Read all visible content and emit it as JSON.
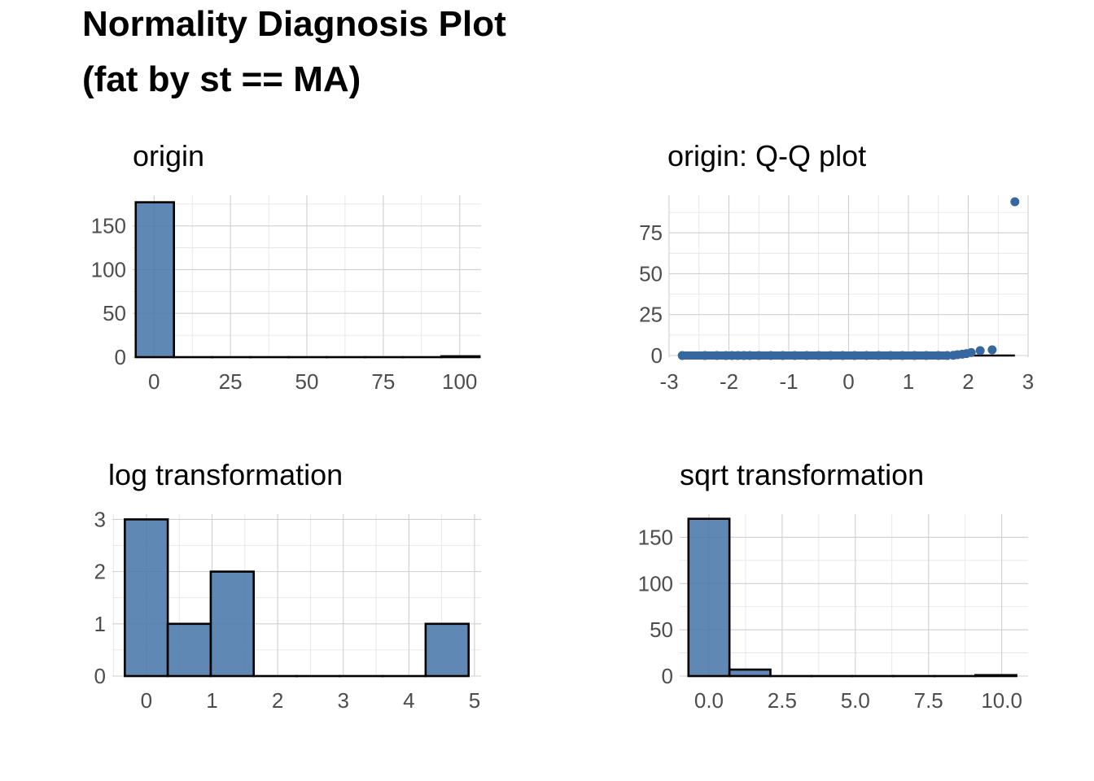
{
  "figure": {
    "title_line1": "Normality Diagnosis Plot",
    "title_line2": "(fat by st == MA)"
  },
  "colors": {
    "bar_fill": "#4a77ab",
    "bar_stroke": "#000000",
    "point": "#36679f",
    "grid": "#cfcfcf",
    "tick_text": "#4d4d4d"
  },
  "chart_data": [
    {
      "id": "origin",
      "type": "bar",
      "title": "origin",
      "xlabel": "",
      "ylabel": "",
      "bins": [
        [
          -6,
          6.5,
          177
        ],
        [
          6.5,
          19,
          0
        ],
        [
          19,
          31.5,
          0
        ],
        [
          31.5,
          44,
          0
        ],
        [
          44,
          56.5,
          0
        ],
        [
          56.5,
          69,
          0
        ],
        [
          69,
          81.5,
          0
        ],
        [
          81.5,
          94,
          0
        ],
        [
          94,
          106.5,
          1
        ]
      ],
      "xlim": [
        -7,
        107
      ],
      "ylim": [
        0,
        185
      ],
      "xticks": [
        0,
        25,
        50,
        75,
        100
      ],
      "xtick_labels": [
        "0",
        "25",
        "50",
        "75",
        "100"
      ],
      "yticks": [
        0,
        50,
        100,
        150
      ],
      "ytick_labels": [
        "0",
        "50",
        "100",
        "150"
      ],
      "grid": true
    },
    {
      "id": "qq",
      "type": "scatter",
      "title": "origin: Q-Q plot",
      "xlabel": "",
      "ylabel": "",
      "x": [
        -2.78,
        -2.4,
        -2.2,
        -2.05,
        -1.95,
        -1.85,
        -1.75,
        -1.65,
        -1.5,
        -1.3,
        -1.1,
        -0.9,
        -0.7,
        -0.5,
        -0.3,
        -0.1,
        0.1,
        0.3,
        0.5,
        0.7,
        0.9,
        1.1,
        1.3,
        1.5,
        1.65,
        1.75,
        1.82,
        1.9,
        1.97,
        2.05,
        2.2,
        2.4,
        2.78
      ],
      "y": [
        0,
        0,
        0,
        0,
        0,
        0,
        0,
        0,
        0,
        0,
        0,
        0,
        0,
        0,
        0,
        0,
        0,
        0,
        0,
        0,
        0,
        0,
        0,
        0,
        0,
        0.1,
        0.5,
        0.8,
        1.2,
        1.8,
        3,
        3.5,
        94
      ],
      "reference_line": {
        "x": [
          -2.78,
          2.78
        ],
        "y": [
          0,
          0
        ]
      },
      "xlim": [
        -3,
        3
      ],
      "ylim": [
        -1,
        98
      ],
      "xticks": [
        -3,
        -2,
        -1,
        0,
        1,
        2,
        3
      ],
      "xtick_labels": [
        "-3",
        "-2",
        "-1",
        "0",
        "1",
        "2",
        "3"
      ],
      "yticks": [
        0,
        25,
        50,
        75
      ],
      "ytick_labels": [
        "0",
        "25",
        "50",
        "75"
      ],
      "grid": true
    },
    {
      "id": "log",
      "type": "bar",
      "title": "log transformation",
      "xlabel": "",
      "ylabel": "",
      "bins": [
        [
          -0.33,
          0.325,
          3
        ],
        [
          0.325,
          0.98,
          1
        ],
        [
          0.98,
          1.635,
          2
        ],
        [
          1.635,
          2.29,
          0
        ],
        [
          2.29,
          2.945,
          0
        ],
        [
          2.945,
          3.6,
          0
        ],
        [
          3.6,
          4.255,
          0
        ],
        [
          4.255,
          4.91,
          1
        ]
      ],
      "xlim": [
        -0.52,
        5.1
      ],
      "ylim": [
        0,
        3.1
      ],
      "xticks": [
        0,
        1,
        2,
        3,
        4,
        5
      ],
      "xtick_labels": [
        "0",
        "1",
        "2",
        "3",
        "4",
        "5"
      ],
      "yticks": [
        0,
        1,
        2,
        3
      ],
      "ytick_labels": [
        "0",
        "1",
        "2",
        "3"
      ],
      "grid": true
    },
    {
      "id": "sqrt",
      "type": "bar",
      "title": "sqrt transformation",
      "xlabel": "",
      "ylabel": "",
      "bins": [
        [
          -0.7,
          0.7,
          170
        ],
        [
          0.7,
          2.1,
          7
        ],
        [
          2.1,
          3.5,
          0
        ],
        [
          3.5,
          4.9,
          0
        ],
        [
          4.9,
          6.3,
          0
        ],
        [
          6.3,
          7.7,
          0
        ],
        [
          7.7,
          9.1,
          0
        ],
        [
          9.1,
          10.5,
          1
        ]
      ],
      "xlim": [
        -1.0,
        10.9
      ],
      "ylim": [
        0,
        175
      ],
      "xticks": [
        0,
        2.5,
        5,
        7.5,
        10
      ],
      "xtick_labels": [
        "0.0",
        "2.5",
        "5.0",
        "7.5",
        "10.0"
      ],
      "yticks": [
        0,
        50,
        100,
        150
      ],
      "ytick_labels": [
        "0",
        "50",
        "100",
        "150"
      ],
      "grid": true
    }
  ]
}
